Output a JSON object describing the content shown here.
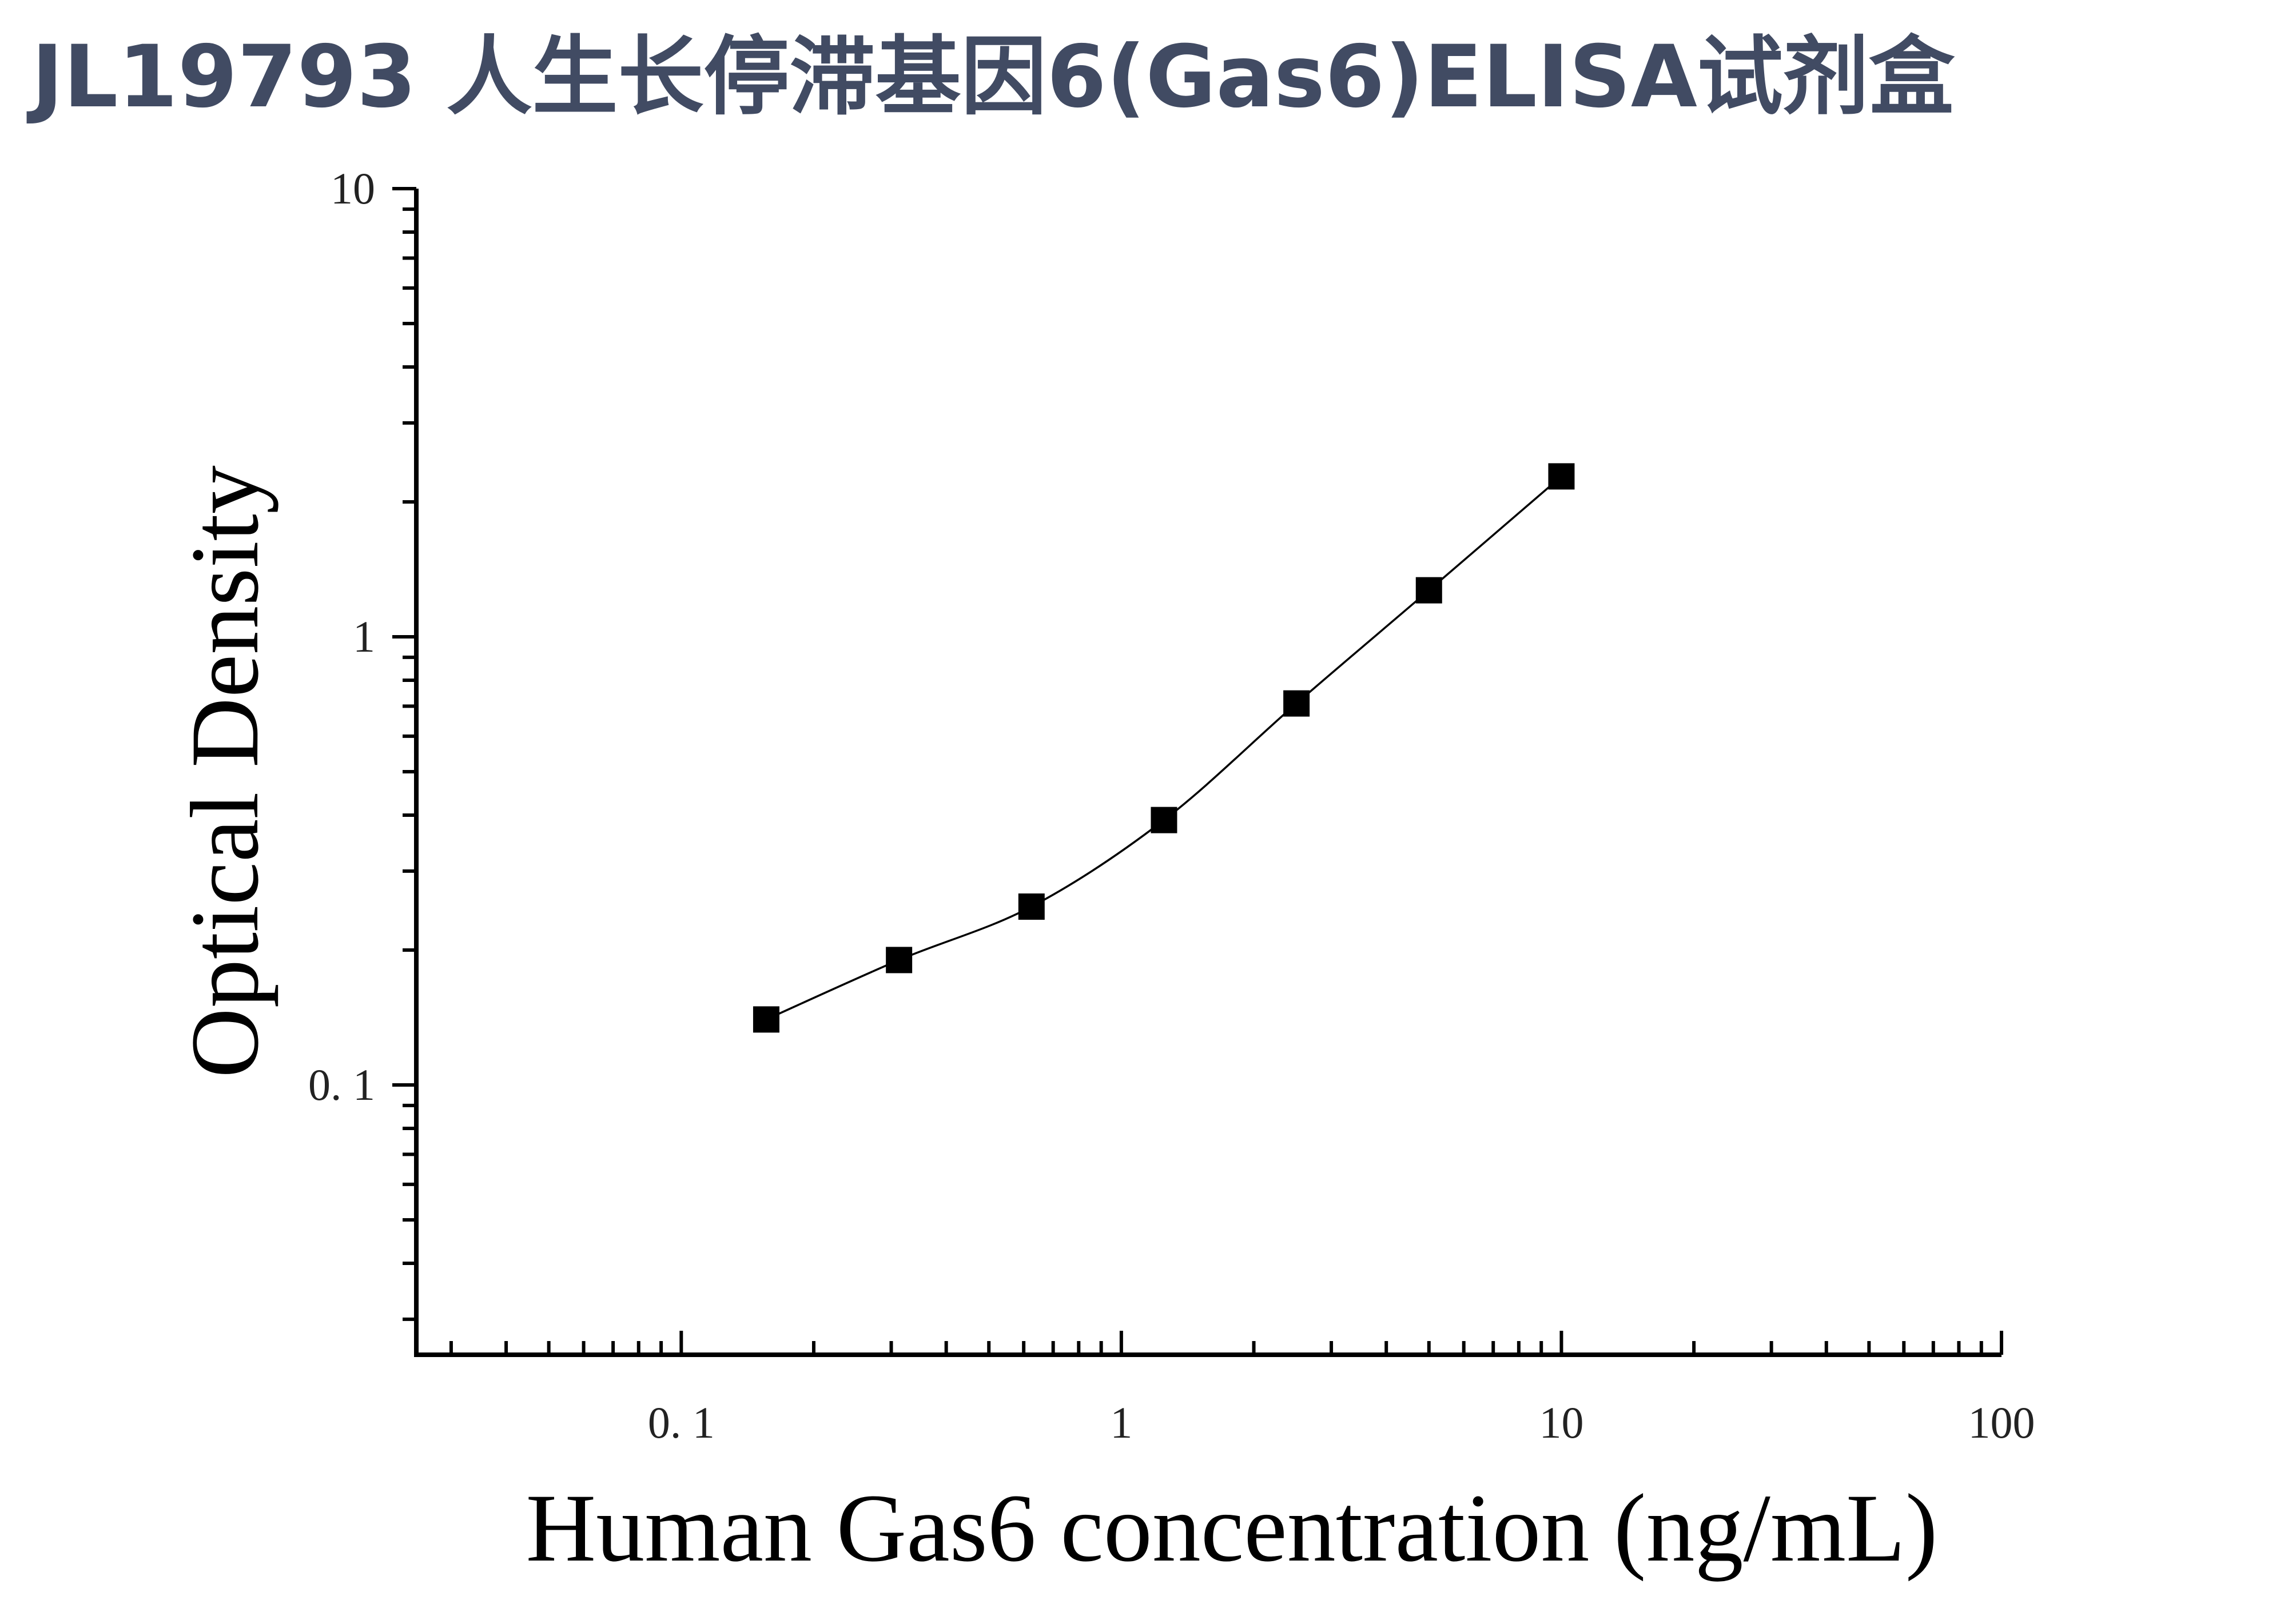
{
  "chart_data": {
    "type": "scatter",
    "title": "JL19793 人生长停滞基因6(Gas6)ELISA试剂盒",
    "xlabel": "Human Gas6 concentration (ng/mL)",
    "ylabel": "Optical Density",
    "x_scale": "log",
    "y_scale": "log",
    "xlim": [
      0.025,
      100
    ],
    "ylim": [
      0.025,
      10
    ],
    "x_ticks": [
      {
        "value": 0.1,
        "label": "0. 1"
      },
      {
        "value": 1,
        "label": "1"
      },
      {
        "value": 10,
        "label": "10"
      },
      {
        "value": 100,
        "label": "100"
      }
    ],
    "y_ticks": [
      {
        "value": 0.1,
        "label": "0. 1"
      },
      {
        "value": 1,
        "label": "1"
      },
      {
        "value": 10,
        "label": "10"
      }
    ],
    "grid": false,
    "legend": "none",
    "series": [
      {
        "x": [
          0.156,
          0.3125,
          0.625,
          1.25,
          2.5,
          5,
          10
        ],
        "y": [
          0.14,
          0.19,
          0.25,
          0.39,
          0.71,
          1.27,
          2.28
        ]
      }
    ],
    "fit_curve": true
  },
  "colors": {
    "title": "#414b63",
    "marks": "#000000",
    "background": "#ffffff"
  }
}
